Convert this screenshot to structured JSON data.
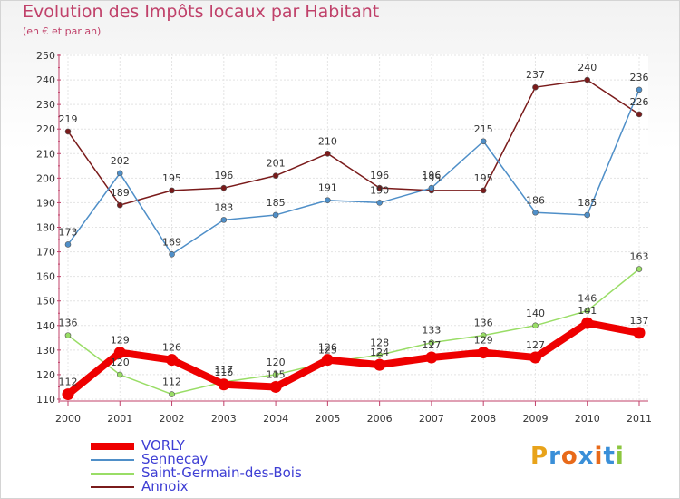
{
  "header": {
    "title": "Evolution des Impôts locaux par Habitant",
    "subtitle": "(en € et par an)"
  },
  "logo": {
    "text": "Proxiti",
    "letter_colors": [
      "#e8a31a",
      "#3a8fd8",
      "#e86a1a",
      "#3a8fd8",
      "#e86a1a",
      "#3a8fd8",
      "#8cc63f"
    ]
  },
  "chart_data": {
    "type": "line",
    "title": "Evolution des Impôts locaux par Habitant",
    "subtitle": "(en € et par an)",
    "xlabel": "",
    "ylabel": "",
    "categories": [
      "2000",
      "2001",
      "2002",
      "2003",
      "2004",
      "2005",
      "2006",
      "2007",
      "2008",
      "2009",
      "2010",
      "2011"
    ],
    "ylim": [
      110,
      250
    ],
    "yticks": [
      "110",
      "120",
      "130",
      "140",
      "150",
      "160",
      "170",
      "180",
      "190",
      "200",
      "210",
      "220",
      "230",
      "240",
      "250"
    ],
    "grid": true,
    "legend_position": "bottom-left",
    "series": [
      {
        "name": "VORLY",
        "color": "#ee0000",
        "width": "thick",
        "values": [
          112,
          129,
          126,
          116,
          115,
          126,
          124,
          127,
          129,
          127,
          141,
          137
        ],
        "labels": [
          "112",
          "129",
          "126",
          "116",
          "115",
          "126",
          "124",
          "127",
          "129",
          "127",
          "141",
          "137"
        ]
      },
      {
        "name": "Sennecay",
        "color": "#4f8fc8",
        "width": "thin",
        "values": [
          173,
          202,
          169,
          183,
          185,
          191,
          190,
          196,
          215,
          186,
          185,
          236
        ],
        "labels": [
          "173",
          "202",
          "169",
          "183",
          "185",
          "191",
          "190",
          "196",
          "215",
          "186",
          "185",
          "236"
        ]
      },
      {
        "name": "Saint-Germain-des-Bois",
        "color": "#99dd66",
        "width": "thin",
        "values": [
          136,
          120,
          112,
          117,
          120,
          125,
          128,
          133,
          136,
          140,
          146,
          163
        ],
        "labels": [
          "136",
          "120",
          "112",
          "117",
          "120",
          "125",
          "128",
          "133",
          "136",
          "140",
          "146",
          "163"
        ]
      },
      {
        "name": "Annoix",
        "color": "#7a1b1b",
        "width": "thin",
        "values": [
          219,
          189,
          195,
          196,
          201,
          210,
          196,
          195,
          195,
          237,
          240,
          226
        ],
        "labels": [
          "219",
          "189",
          "195",
          "196",
          "201",
          "210",
          "196",
          "195",
          "195",
          "237",
          "240",
          "226"
        ]
      }
    ]
  }
}
